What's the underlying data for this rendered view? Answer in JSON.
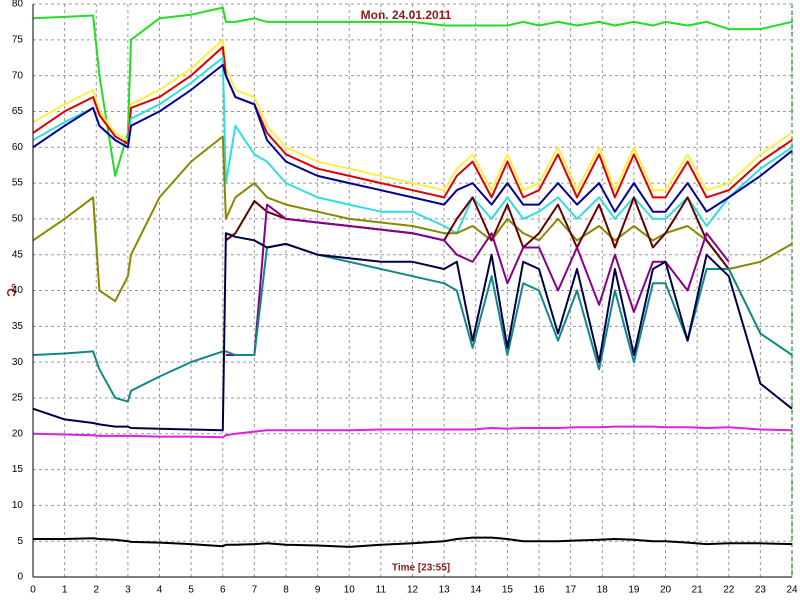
{
  "chart_data": {
    "type": "line",
    "title": "Mon. 24.01.2011",
    "xlabel": "Time [23:55]",
    "ylabel": "°C",
    "grid": true,
    "xlim": [
      0,
      24
    ],
    "xticks": [
      0,
      1,
      2,
      3,
      4,
      5,
      6,
      7,
      8,
      9,
      10,
      11,
      12,
      13,
      14,
      15,
      16,
      17,
      18,
      19,
      20,
      21,
      22,
      23,
      24
    ],
    "ylim": [
      0,
      80
    ],
    "yticks": [
      0,
      5,
      10,
      15,
      20,
      25,
      30,
      35,
      40,
      45,
      50,
      55,
      60,
      65,
      70,
      75,
      80
    ],
    "x": [
      0,
      1,
      1.9,
      2.1,
      2.6,
      3,
      3.1,
      4,
      5,
      6,
      6.1,
      6.4,
      7,
      7.4,
      8,
      9,
      10,
      11,
      12,
      13,
      13.4,
      13.9,
      14.5,
      15,
      15.5,
      16,
      16.6,
      17.2,
      17.9,
      18.4,
      19,
      19.6,
      20,
      20.7,
      21.3,
      22,
      23,
      24
    ],
    "series": [
      {
        "color": "#22dd22",
        "values": [
          78,
          78.2,
          78.4,
          70,
          56,
          62,
          75,
          78,
          78.5,
          79.5,
          77.5,
          77.5,
          78,
          77.5,
          77.5,
          77.5,
          77.5,
          77.5,
          77.5,
          77,
          77,
          77,
          77,
          77,
          77.5,
          77,
          77.5,
          77,
          77.5,
          77,
          77.5,
          77,
          77.5,
          77,
          77.5,
          76.5,
          76.5,
          77.5
        ]
      },
      {
        "color": "#ffee44",
        "values": [
          63.5,
          66,
          68,
          65,
          62,
          61,
          66,
          68,
          71,
          75,
          71,
          68,
          67,
          63,
          60,
          58,
          57,
          56,
          55,
          54,
          57,
          59,
          54,
          59,
          54,
          55,
          60,
          54,
          60,
          54,
          60,
          54,
          54,
          59,
          54,
          55,
          59,
          62
        ]
      },
      {
        "color": "#dd0000",
        "values": [
          62,
          65,
          67,
          64.5,
          61.5,
          60.5,
          65.5,
          67,
          70,
          74,
          70,
          67,
          66,
          62,
          59,
          57,
          56,
          55,
          54,
          53,
          56,
          58,
          53,
          58,
          53,
          54,
          59,
          53,
          59,
          53,
          59,
          53,
          53,
          58,
          53,
          54,
          58,
          61
        ]
      },
      {
        "color": "#33dddd",
        "values": [
          61,
          63.5,
          65.5,
          63,
          61,
          60,
          64,
          66,
          69,
          72.5,
          55,
          63,
          59,
          58,
          55,
          53,
          52,
          51,
          51,
          49,
          48,
          53,
          50,
          53,
          50,
          51,
          53,
          50,
          53,
          50,
          53,
          50,
          50,
          53,
          49,
          53,
          57,
          60
        ]
      },
      {
        "color": "#000099",
        "values": [
          60,
          63,
          65.5,
          63,
          61,
          60,
          63,
          65,
          68,
          71.5,
          70,
          67,
          66,
          61,
          58,
          56,
          55,
          54,
          53,
          52,
          54,
          55,
          52,
          55,
          52,
          52,
          55,
          52,
          55,
          51,
          55,
          51,
          51,
          55,
          51,
          53,
          56,
          59.5
        ]
      },
      {
        "color": "#888800",
        "values": [
          47,
          50,
          53,
          40,
          38.5,
          42,
          45,
          53,
          58,
          61.5,
          50,
          53,
          55,
          53,
          52,
          51,
          50,
          49.5,
          49,
          48,
          48,
          49,
          47,
          50,
          48,
          47,
          50,
          47,
          49,
          47,
          49,
          47,
          48,
          49,
          47,
          43,
          44,
          46.5
        ]
      },
      {
        "color": "#660000",
        "values": [
          null,
          null,
          null,
          null,
          null,
          null,
          null,
          null,
          null,
          null,
          47,
          48,
          52.5,
          51,
          50,
          49.5,
          49,
          48.5,
          48,
          47,
          50,
          53,
          47,
          52,
          46,
          48,
          52,
          46,
          52,
          46,
          53,
          46,
          48,
          53,
          47,
          43,
          null,
          null
        ]
      },
      {
        "color": "#880088",
        "values": [
          null,
          null,
          null,
          null,
          null,
          null,
          null,
          null,
          null,
          null,
          31,
          31,
          31,
          52,
          50,
          49.5,
          49,
          48.5,
          48,
          47,
          45,
          44,
          48,
          41,
          46,
          46,
          40,
          46,
          38,
          45,
          37,
          44,
          44,
          40,
          48,
          44,
          null,
          null
        ]
      },
      {
        "color": "#118888",
        "values": [
          31,
          31.2,
          31.5,
          29,
          25,
          24.5,
          26,
          28,
          30,
          31.5,
          31.5,
          31,
          31,
          46,
          46.5,
          45,
          44,
          43,
          42,
          41,
          40,
          32,
          42,
          31,
          41,
          40,
          33,
          40,
          29,
          40,
          30,
          41,
          41,
          33,
          43,
          43,
          34,
          31
        ]
      },
      {
        "color": "#000044",
        "values": [
          23.5,
          22,
          21.5,
          21.3,
          21,
          21,
          20.8,
          20.7,
          20.6,
          20.5,
          48,
          47.5,
          47,
          46,
          46.5,
          45,
          44.5,
          44,
          44,
          43,
          44,
          33,
          45,
          32,
          44,
          43,
          34,
          43,
          30,
          43,
          31,
          43,
          44,
          33,
          45,
          42,
          27,
          23.5
        ]
      },
      {
        "color": "#dd22dd",
        "values": [
          20,
          19.9,
          19.8,
          19.7,
          19.7,
          19.7,
          19.7,
          19.6,
          19.6,
          19.5,
          19.8,
          20,
          20.3,
          20.5,
          20.5,
          20.5,
          20.5,
          20.6,
          20.6,
          20.6,
          20.6,
          20.6,
          20.8,
          20.7,
          20.8,
          20.8,
          20.8,
          20.9,
          20.9,
          21,
          21,
          21,
          20.9,
          20.9,
          20.8,
          20.9,
          20.6,
          20.5
        ]
      },
      {
        "color": "#000000",
        "values": [
          5.3,
          5.3,
          5.4,
          5.3,
          5.2,
          5,
          4.9,
          4.8,
          4.6,
          4.3,
          4.5,
          4.5,
          4.6,
          4.7,
          4.5,
          4.4,
          4.2,
          4.5,
          4.7,
          5,
          5.3,
          5.5,
          5.5,
          5.3,
          5,
          5,
          5,
          5.1,
          5.2,
          5.3,
          5.2,
          5,
          5,
          4.8,
          4.6,
          4.7,
          4.7,
          4.6
        ]
      }
    ]
  }
}
